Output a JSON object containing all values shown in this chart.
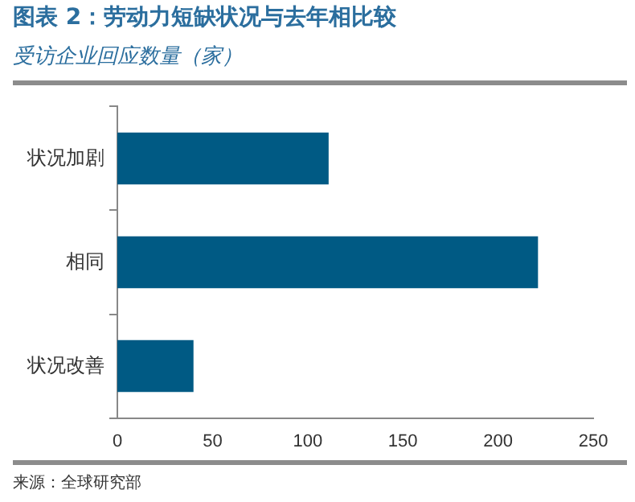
{
  "chart_data": {
    "type": "bar",
    "orientation": "horizontal",
    "title": "图表 2：劳动力短缺状况与去年相比较",
    "subtitle": "受访企业回应数量（家）",
    "categories": [
      "状况加剧",
      "相同",
      "状况改善"
    ],
    "values": [
      111,
      221,
      40
    ],
    "color": "#005a84",
    "xlim": [
      0,
      250
    ],
    "xticks": [
      0,
      50,
      100,
      150,
      200,
      250
    ],
    "grid": false,
    "annotations": [
      "来源：全球研究部"
    ]
  }
}
